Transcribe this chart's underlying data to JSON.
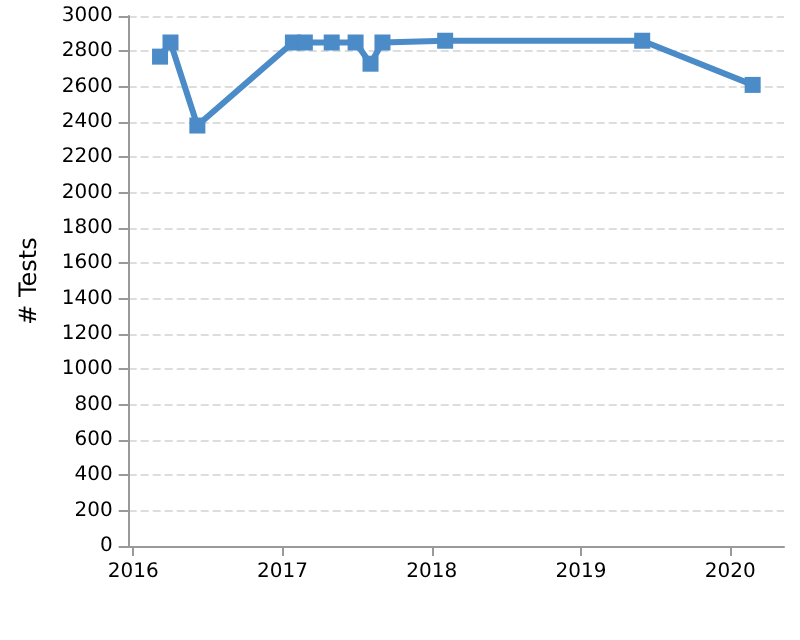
{
  "chart_data": {
    "type": "line",
    "ylabel": "# Tests",
    "x": [
      2016.18,
      2016.25,
      2016.43,
      2017.07,
      2017.15,
      2017.33,
      2017.49,
      2017.59,
      2017.67,
      2018.09,
      2019.41,
      2020.15
    ],
    "series": [
      {
        "color": "#4a8bc8",
        "values": [
          2770,
          2850,
          2380,
          2850,
          2850,
          2850,
          2850,
          2730,
          2850,
          2860,
          2860,
          2610
        ]
      }
    ],
    "xlim": [
      2015.97,
      2020.36
    ],
    "xticks": [
      2016,
      2017,
      2018,
      2019,
      2020
    ],
    "ylim": [
      0,
      3000
    ],
    "yticks": [
      0,
      200,
      400,
      600,
      800,
      1000,
      1200,
      1400,
      1600,
      1800,
      2000,
      2200,
      2400,
      2600,
      2800,
      3000
    ],
    "grid": "y",
    "marker": "square",
    "line_style": "solid"
  }
}
